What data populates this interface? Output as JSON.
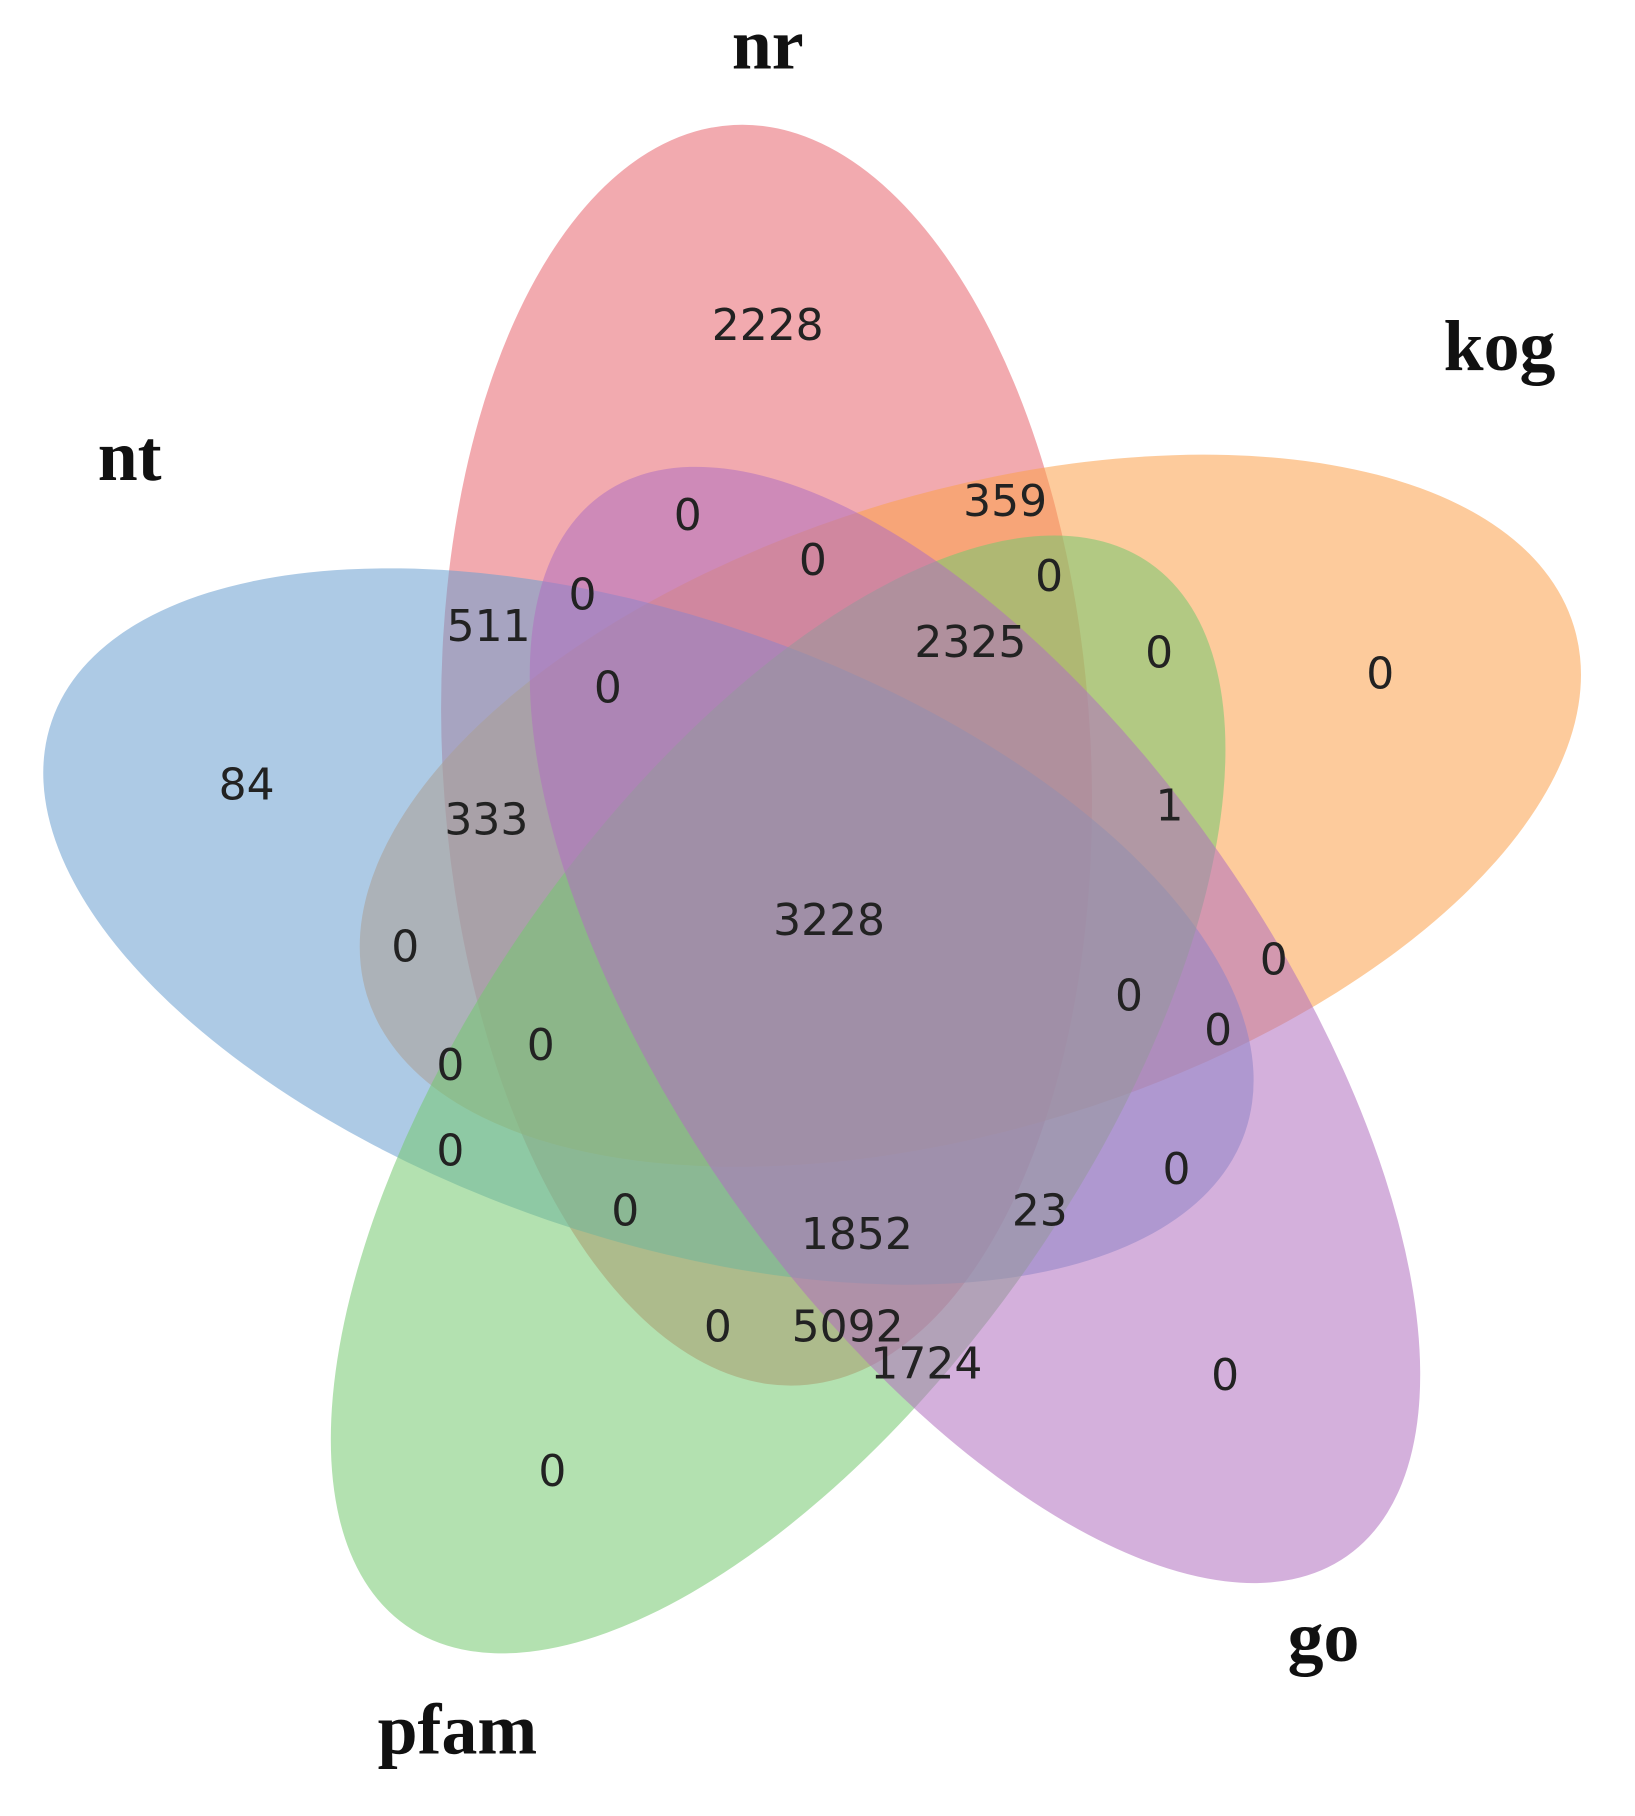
{
  "chart_data": {
    "type": "venn",
    "sets": [
      {
        "name": "nr",
        "color": "#e8646e"
      },
      {
        "name": "kog",
        "color": "#fca04a"
      },
      {
        "name": "nt",
        "color": "#6a9fd0"
      },
      {
        "name": "pfam",
        "color": "#74c870"
      },
      {
        "name": "go",
        "color": "#b070c0"
      }
    ],
    "values": [
      2228,
      359,
      0,
      84,
      0,
      0,
      0,
      0,
      511,
      2325,
      0,
      0,
      333,
      1,
      3228,
      0,
      0,
      0,
      0,
      0,
      0,
      0,
      0,
      0,
      1852,
      23,
      0,
      5092,
      1724,
      0,
      0
    ]
  }
}
